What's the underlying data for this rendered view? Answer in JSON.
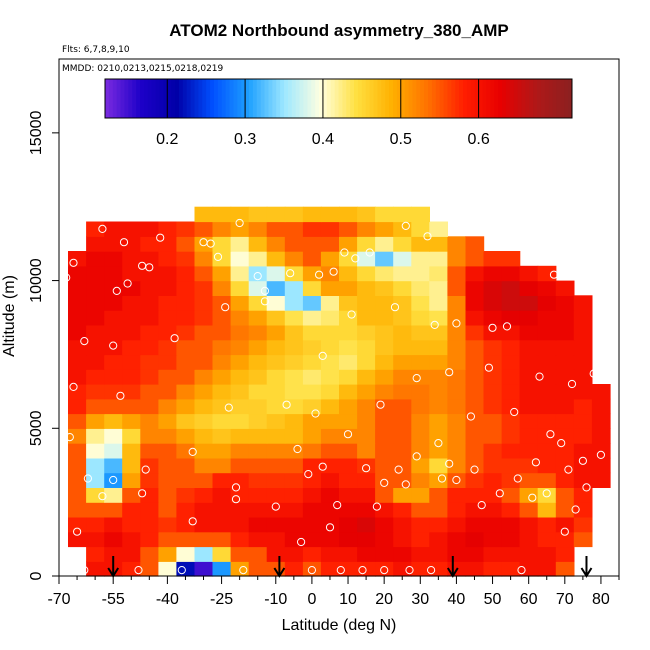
{
  "chart_data": {
    "type": "heatmap",
    "title": "ATOM2 Northbound asymmetry_380_AMP",
    "subtitle_flights": "Flts: 6,7,8,9,10",
    "subtitle_dates": "MMDD: 0210,0213,0215,0218,0219",
    "xlabel": "Latitude (deg N)",
    "ylabel": "Altitude (m)",
    "xlim": [
      -70,
      85
    ],
    "ylim": [
      0,
      17500
    ],
    "x_ticks": [
      "-70",
      "-55",
      "-40",
      "-25",
      "-10",
      "0",
      "10",
      "20",
      "30",
      "40",
      "50",
      "60",
      "70",
      "80"
    ],
    "x_tick_values": [
      -70,
      -55,
      -40,
      -25,
      -10,
      0,
      10,
      20,
      30,
      40,
      50,
      60,
      70,
      80
    ],
    "x_minor_tick_values": [
      -65,
      -60,
      -50,
      -45,
      -35,
      -30,
      -20,
      -15,
      -5,
      5,
      15,
      25,
      35,
      45,
      55,
      65,
      75,
      85
    ],
    "y_ticks": [
      "0",
      "5000",
      "10000",
      "15000"
    ],
    "y_tick_values": [
      0,
      5000,
      10000,
      15000
    ],
    "colorbar": {
      "min": 0.12,
      "max": 0.72,
      "ticks": [
        "0.2",
        "0.3",
        "0.4",
        "0.5",
        "0.6"
      ],
      "tick_values": [
        0.2,
        0.3,
        0.4,
        0.5,
        0.6
      ],
      "colors": [
        "#7b2be0",
        "#1d00c8",
        "#0000a8",
        "#0050ff",
        "#1ea0ff",
        "#9ee8ff",
        "#ffffe0",
        "#ffe040",
        "#ffb000",
        "#ff7000",
        "#ff1e00",
        "#e80000",
        "#b01818",
        "#8b2020"
      ]
    },
    "lat_bins": [
      -65,
      -60,
      -55,
      -50,
      -45,
      -40,
      -35,
      -30,
      -25,
      -20,
      -15,
      -10,
      -5,
      0,
      5,
      10,
      15,
      20,
      25,
      30,
      35,
      40,
      45,
      50,
      55,
      60,
      65,
      70,
      75,
      80
    ],
    "alt_bins": [
      250,
      750,
      1250,
      1750,
      2250,
      2750,
      3250,
      3750,
      4250,
      4750,
      5250,
      5750,
      6250,
      6750,
      7250,
      7750,
      8250,
      8750,
      9250,
      9750,
      10250,
      10750,
      11250,
      11750,
      12250
    ],
    "values": [
      [
        null,
        0.6,
        0.6,
        0.58,
        0.55,
        0.4,
        0.22,
        0.15,
        0.3,
        0.5,
        0.55,
        0.55,
        0.58,
        0.55,
        0.58,
        0.58,
        0.58,
        0.58,
        0.6,
        0.58,
        0.58,
        0.6,
        0.6,
        0.58,
        0.58,
        0.6,
        0.6,
        0.55,
        null,
        null
      ],
      [
        null,
        0.58,
        0.6,
        0.6,
        0.55,
        0.5,
        0.4,
        0.35,
        0.45,
        0.55,
        0.55,
        0.6,
        0.6,
        0.58,
        0.6,
        0.6,
        0.62,
        0.62,
        0.62,
        0.6,
        0.6,
        0.62,
        0.62,
        0.6,
        0.6,
        0.6,
        0.6,
        0.58,
        null,
        null
      ],
      [
        0.6,
        0.6,
        0.62,
        0.6,
        0.58,
        0.55,
        0.55,
        0.55,
        0.55,
        0.58,
        0.6,
        0.6,
        0.62,
        0.62,
        0.62,
        0.63,
        0.63,
        0.62,
        0.6,
        0.58,
        0.6,
        0.62,
        0.63,
        0.62,
        0.62,
        0.6,
        0.58,
        0.58,
        0.55,
        null
      ],
      [
        0.58,
        0.58,
        0.6,
        0.58,
        0.58,
        0.57,
        0.58,
        0.6,
        0.6,
        0.6,
        0.62,
        0.62,
        0.62,
        0.62,
        0.62,
        0.63,
        0.64,
        0.62,
        0.6,
        0.58,
        0.58,
        0.6,
        0.62,
        0.62,
        0.62,
        0.6,
        0.58,
        0.6,
        0.57,
        null
      ],
      [
        0.55,
        0.55,
        0.55,
        0.58,
        0.58,
        0.55,
        0.58,
        0.6,
        0.6,
        0.6,
        0.6,
        0.6,
        0.6,
        0.62,
        0.62,
        0.62,
        0.62,
        0.6,
        0.58,
        0.55,
        0.55,
        0.58,
        0.6,
        0.6,
        0.58,
        0.55,
        0.48,
        0.55,
        0.58,
        null
      ],
      [
        0.55,
        0.45,
        0.42,
        0.55,
        0.58,
        0.55,
        0.57,
        0.58,
        0.6,
        0.58,
        0.58,
        0.58,
        0.58,
        0.6,
        0.62,
        0.6,
        0.6,
        0.55,
        0.5,
        0.5,
        0.55,
        0.58,
        0.58,
        0.58,
        0.55,
        0.5,
        0.45,
        0.55,
        0.58,
        null
      ],
      [
        0.55,
        0.35,
        0.3,
        0.5,
        0.57,
        0.55,
        0.55,
        0.55,
        0.58,
        0.58,
        0.57,
        0.57,
        0.57,
        0.58,
        0.6,
        0.58,
        0.58,
        0.55,
        0.55,
        0.52,
        0.5,
        0.55,
        0.57,
        0.58,
        0.57,
        0.55,
        0.55,
        0.58,
        0.6,
        0.6
      ],
      [
        0.55,
        0.35,
        0.32,
        0.48,
        0.57,
        0.55,
        0.55,
        0.52,
        0.52,
        0.55,
        0.55,
        0.55,
        0.55,
        0.58,
        0.58,
        0.58,
        0.57,
        0.55,
        0.55,
        0.5,
        0.45,
        0.52,
        0.55,
        0.57,
        0.57,
        0.57,
        0.58,
        0.58,
        0.6,
        0.6
      ],
      [
        0.55,
        0.4,
        0.38,
        0.48,
        0.55,
        0.55,
        0.53,
        0.5,
        0.5,
        0.52,
        0.52,
        0.52,
        0.52,
        0.53,
        0.55,
        0.55,
        0.52,
        0.55,
        0.55,
        0.52,
        0.5,
        0.52,
        0.55,
        0.57,
        0.58,
        0.58,
        0.58,
        0.58,
        0.6,
        0.6
      ],
      [
        0.52,
        0.42,
        0.4,
        0.45,
        0.52,
        0.52,
        0.5,
        0.48,
        0.47,
        0.48,
        0.48,
        0.48,
        0.48,
        0.5,
        0.52,
        0.52,
        0.52,
        0.55,
        0.55,
        0.52,
        0.5,
        0.52,
        0.55,
        0.55,
        0.57,
        0.58,
        0.58,
        0.58,
        0.58,
        0.6
      ],
      [
        0.55,
        0.5,
        0.48,
        0.5,
        0.52,
        0.5,
        0.47,
        0.46,
        0.45,
        0.45,
        0.46,
        0.47,
        0.48,
        0.5,
        0.5,
        0.5,
        0.52,
        0.55,
        0.55,
        0.52,
        0.5,
        0.52,
        0.55,
        0.55,
        0.57,
        0.58,
        0.58,
        0.58,
        0.58,
        0.6
      ],
      [
        0.58,
        0.55,
        0.55,
        0.55,
        0.55,
        0.52,
        0.5,
        0.48,
        0.47,
        0.46,
        0.46,
        0.45,
        0.45,
        0.46,
        0.48,
        0.5,
        0.52,
        0.55,
        0.55,
        0.53,
        0.52,
        0.53,
        0.55,
        0.57,
        0.58,
        0.6,
        0.6,
        0.6,
        0.58,
        0.6
      ],
      [
        0.58,
        0.57,
        0.57,
        0.57,
        0.55,
        0.55,
        0.52,
        0.5,
        0.48,
        0.47,
        0.45,
        0.45,
        0.44,
        0.44,
        0.45,
        0.48,
        0.5,
        0.52,
        0.53,
        0.53,
        0.52,
        0.53,
        0.55,
        0.57,
        0.58,
        0.6,
        0.6,
        0.6,
        0.6,
        0.6
      ],
      [
        0.6,
        0.58,
        0.58,
        0.58,
        0.57,
        0.55,
        0.55,
        0.52,
        0.5,
        0.48,
        0.47,
        0.45,
        0.44,
        0.43,
        0.44,
        0.45,
        0.48,
        0.5,
        0.52,
        0.52,
        0.52,
        0.53,
        0.55,
        0.57,
        0.58,
        0.6,
        0.6,
        0.6,
        0.6,
        null
      ],
      [
        0.6,
        0.6,
        0.58,
        0.58,
        0.57,
        0.57,
        0.55,
        0.55,
        0.52,
        0.5,
        0.48,
        0.47,
        0.46,
        0.45,
        0.44,
        0.43,
        0.45,
        0.48,
        0.5,
        0.5,
        0.5,
        0.52,
        0.55,
        0.57,
        0.58,
        0.6,
        0.6,
        0.6,
        0.6,
        null
      ],
      [
        0.6,
        0.6,
        0.6,
        0.58,
        0.58,
        0.57,
        0.55,
        0.55,
        0.53,
        0.52,
        0.5,
        0.48,
        0.47,
        0.46,
        0.45,
        0.44,
        0.45,
        0.47,
        0.48,
        0.48,
        0.48,
        0.52,
        0.55,
        0.57,
        0.58,
        0.6,
        0.6,
        0.6,
        0.6,
        null
      ],
      [
        0.62,
        0.6,
        0.6,
        0.6,
        0.58,
        0.58,
        0.57,
        0.55,
        0.55,
        0.53,
        0.52,
        0.5,
        0.47,
        0.45,
        0.45,
        0.45,
        0.46,
        0.47,
        0.48,
        0.47,
        0.47,
        0.52,
        0.57,
        0.6,
        0.6,
        0.62,
        0.62,
        0.62,
        0.6,
        null
      ],
      [
        0.62,
        0.62,
        0.6,
        0.6,
        0.6,
        0.58,
        0.58,
        0.57,
        0.55,
        0.52,
        0.5,
        0.47,
        0.44,
        0.42,
        0.43,
        0.45,
        0.48,
        0.48,
        0.47,
        0.45,
        0.44,
        0.52,
        0.6,
        0.62,
        0.63,
        0.63,
        0.62,
        0.62,
        0.6,
        null
      ],
      [
        0.62,
        0.62,
        0.62,
        0.6,
        0.6,
        0.58,
        0.58,
        0.57,
        0.55,
        0.5,
        0.45,
        0.4,
        0.35,
        0.33,
        0.42,
        0.47,
        0.48,
        0.48,
        0.47,
        0.44,
        0.42,
        0.52,
        0.62,
        0.64,
        0.65,
        0.65,
        0.63,
        0.62,
        0.6,
        null
      ],
      [
        0.62,
        0.62,
        0.62,
        0.62,
        0.6,
        0.6,
        0.58,
        0.57,
        0.52,
        0.45,
        0.38,
        0.32,
        0.35,
        0.45,
        0.5,
        0.5,
        0.48,
        0.47,
        0.45,
        0.43,
        0.42,
        0.55,
        0.62,
        0.64,
        0.65,
        0.63,
        0.62,
        0.6,
        null,
        null
      ],
      [
        0.62,
        0.62,
        0.62,
        0.6,
        0.6,
        0.6,
        0.58,
        0.55,
        0.5,
        0.42,
        0.35,
        0.38,
        0.45,
        0.5,
        0.52,
        0.48,
        0.45,
        0.43,
        0.42,
        0.42,
        0.43,
        0.55,
        0.6,
        0.62,
        0.62,
        0.6,
        0.58,
        null,
        null,
        null
      ],
      [
        0.6,
        0.62,
        0.62,
        0.6,
        0.6,
        0.58,
        0.57,
        0.52,
        0.45,
        0.4,
        0.42,
        0.48,
        0.52,
        0.55,
        0.5,
        0.45,
        0.38,
        0.33,
        0.38,
        0.42,
        0.42,
        0.52,
        0.55,
        0.57,
        0.57,
        null,
        null,
        null,
        null,
        null
      ],
      [
        null,
        0.6,
        0.6,
        0.6,
        0.58,
        0.58,
        0.55,
        0.5,
        0.45,
        0.42,
        0.48,
        0.52,
        0.55,
        0.55,
        0.55,
        0.5,
        0.45,
        0.42,
        0.45,
        0.48,
        0.48,
        0.52,
        0.55,
        null,
        null,
        null,
        null,
        null,
        null,
        null
      ],
      [
        null,
        0.58,
        0.6,
        0.6,
        0.6,
        0.58,
        0.57,
        0.55,
        0.52,
        0.5,
        0.52,
        0.55,
        0.55,
        0.57,
        0.57,
        0.55,
        0.52,
        0.5,
        0.48,
        0.45,
        0.42,
        null,
        null,
        null,
        null,
        null,
        null,
        null,
        null,
        null
      ],
      [
        null,
        null,
        null,
        null,
        null,
        null,
        null,
        0.48,
        0.48,
        0.48,
        0.47,
        0.47,
        0.47,
        0.48,
        0.48,
        0.48,
        0.47,
        0.45,
        0.45,
        0.45,
        null,
        null,
        null,
        null,
        null,
        null,
        null,
        null,
        null,
        null
      ]
    ],
    "sample_points": [
      [
        -68,
        10100
      ],
      [
        -66,
        10600
      ],
      [
        -64,
        11750
      ],
      [
        -63,
        7950
      ],
      [
        -66,
        6400
      ],
      [
        -67,
        4700
      ],
      [
        -65,
        1500
      ],
      [
        -62,
        3300
      ],
      [
        -58,
        2700
      ],
      [
        -63,
        200
      ],
      [
        -58,
        11750
      ],
      [
        -55,
        7800
      ],
      [
        -54,
        9650
      ],
      [
        -53,
        6100
      ],
      [
        -55,
        3250
      ],
      [
        -52,
        11300
      ],
      [
        -51,
        9900
      ],
      [
        -48,
        200
      ],
      [
        -47,
        10500
      ],
      [
        -45,
        10450
      ],
      [
        -46,
        3600
      ],
      [
        -47,
        2800
      ],
      [
        -42,
        11450
      ],
      [
        -38,
        8050
      ],
      [
        -36,
        200
      ],
      [
        -33,
        4200
      ],
      [
        -33,
        1850
      ],
      [
        -30,
        11300
      ],
      [
        -28,
        11250
      ],
      [
        -26,
        10800
      ],
      [
        -24,
        9100
      ],
      [
        -23,
        5700
      ],
      [
        -21,
        3000
      ],
      [
        -21,
        2600
      ],
      [
        -20,
        11950
      ],
      [
        -19,
        200
      ],
      [
        -15,
        10150
      ],
      [
        -13,
        9650
      ],
      [
        -13,
        9300
      ],
      [
        -10,
        2350
      ],
      [
        -7,
        5800
      ],
      [
        -6,
        10250
      ],
      [
        -4,
        4300
      ],
      [
        -3,
        1150
      ],
      [
        -1,
        3450
      ],
      [
        0,
        200
      ],
      [
        1,
        5500
      ],
      [
        2,
        10200
      ],
      [
        3,
        7450
      ],
      [
        3,
        3700
      ],
      [
        5,
        1650
      ],
      [
        6,
        10300
      ],
      [
        7,
        2400
      ],
      [
        8,
        200
      ],
      [
        9,
        10950
      ],
      [
        10,
        4800
      ],
      [
        11,
        8850
      ],
      [
        12,
        10750
      ],
      [
        14,
        200
      ],
      [
        15,
        3650
      ],
      [
        16,
        10950
      ],
      [
        18,
        2350
      ],
      [
        19,
        5800
      ],
      [
        20,
        3150
      ],
      [
        20,
        200
      ],
      [
        23,
        9100
      ],
      [
        24,
        3600
      ],
      [
        26,
        11850
      ],
      [
        26,
        3100
      ],
      [
        27,
        200
      ],
      [
        29,
        6700
      ],
      [
        29,
        4050
      ],
      [
        32,
        11500
      ],
      [
        33,
        200
      ],
      [
        34,
        8500
      ],
      [
        35,
        4500
      ],
      [
        36,
        3300
      ],
      [
        38,
        6900
      ],
      [
        38,
        3800
      ],
      [
        40,
        8550
      ],
      [
        40,
        3250
      ],
      [
        44,
        5400
      ],
      [
        45,
        3600
      ],
      [
        47,
        2400
      ],
      [
        49,
        7050
      ],
      [
        50,
        8400
      ],
      [
        52,
        2800
      ],
      [
        54,
        8450
      ],
      [
        56,
        5550
      ],
      [
        57,
        3300
      ],
      [
        58,
        200
      ],
      [
        61,
        2650
      ],
      [
        62,
        3850
      ],
      [
        63,
        6750
      ],
      [
        65,
        2800
      ],
      [
        66,
        4800
      ],
      [
        67,
        10200
      ],
      [
        69,
        4500
      ],
      [
        70,
        1500
      ],
      [
        71,
        3600
      ],
      [
        72,
        6500
      ],
      [
        73,
        2250
      ],
      [
        75,
        3900
      ],
      [
        76,
        3000
      ],
      [
        78,
        6850
      ],
      [
        79,
        8650
      ],
      [
        80,
        4100
      ]
    ],
    "arrows_at_latitudes": [
      -55,
      -9,
      39,
      76
    ]
  }
}
